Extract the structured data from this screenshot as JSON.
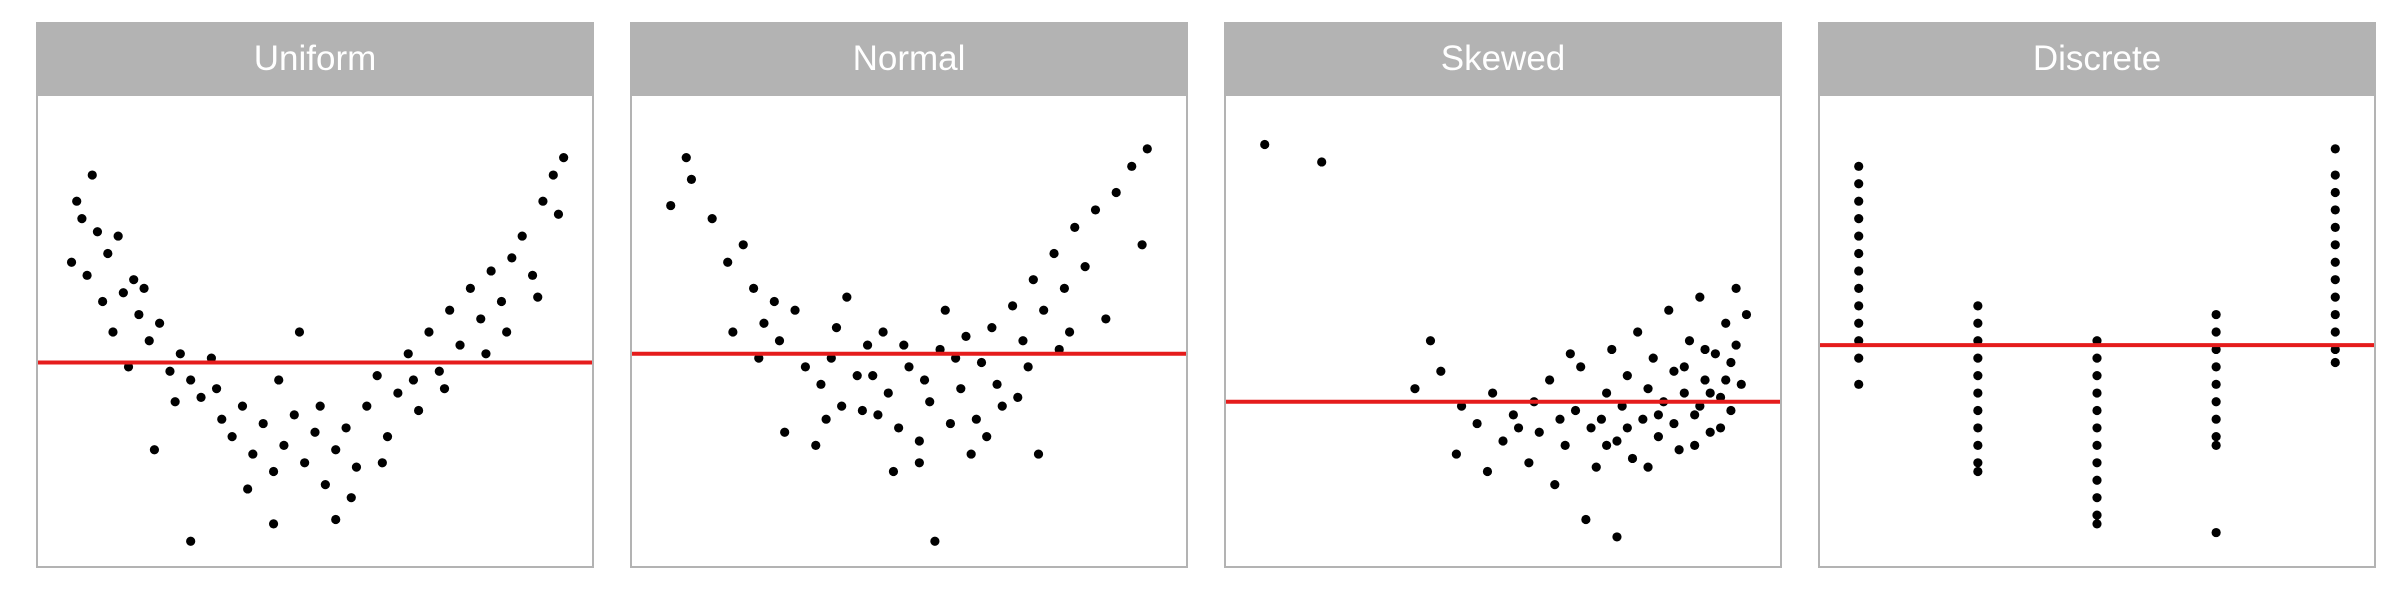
{
  "colors": {
    "point": "#000000",
    "reference_line": "#e51c1c",
    "strip_background": "#b3b3b3",
    "strip_text": "#ffffff",
    "panel_border": "#b3b3b3"
  },
  "chart_data": [
    {
      "type": "scatter",
      "title": "Uniform",
      "xlim": [
        0,
        1
      ],
      "ylim": [
        0,
        1
      ],
      "grid": false,
      "hline": 0.43,
      "points": [
        [
          0.05,
          0.76
        ],
        [
          0.07,
          0.86
        ],
        [
          0.04,
          0.8
        ],
        [
          0.08,
          0.73
        ],
        [
          0.1,
          0.68
        ],
        [
          0.12,
          0.72
        ],
        [
          0.06,
          0.63
        ],
        [
          0.09,
          0.57
        ],
        [
          0.13,
          0.59
        ],
        [
          0.15,
          0.62
        ],
        [
          0.16,
          0.54
        ],
        [
          0.11,
          0.5
        ],
        [
          0.18,
          0.48
        ],
        [
          0.2,
          0.52
        ],
        [
          0.14,
          0.42
        ],
        [
          0.22,
          0.41
        ],
        [
          0.24,
          0.45
        ],
        [
          0.26,
          0.39
        ],
        [
          0.28,
          0.35
        ],
        [
          0.3,
          0.44
        ],
        [
          0.32,
          0.3
        ],
        [
          0.34,
          0.26
        ],
        [
          0.36,
          0.33
        ],
        [
          0.38,
          0.22
        ],
        [
          0.4,
          0.29
        ],
        [
          0.42,
          0.18
        ],
        [
          0.44,
          0.24
        ],
        [
          0.46,
          0.31
        ],
        [
          0.48,
          0.2
        ],
        [
          0.5,
          0.27
        ],
        [
          0.52,
          0.15
        ],
        [
          0.54,
          0.23
        ],
        [
          0.56,
          0.28
        ],
        [
          0.58,
          0.19
        ],
        [
          0.6,
          0.33
        ],
        [
          0.62,
          0.4
        ],
        [
          0.64,
          0.26
        ],
        [
          0.66,
          0.36
        ],
        [
          0.68,
          0.45
        ],
        [
          0.7,
          0.32
        ],
        [
          0.72,
          0.5
        ],
        [
          0.74,
          0.41
        ],
        [
          0.76,
          0.55
        ],
        [
          0.78,
          0.47
        ],
        [
          0.8,
          0.6
        ],
        [
          0.82,
          0.53
        ],
        [
          0.84,
          0.64
        ],
        [
          0.86,
          0.57
        ],
        [
          0.88,
          0.67
        ],
        [
          0.9,
          0.72
        ],
        [
          0.92,
          0.63
        ],
        [
          0.94,
          0.8
        ],
        [
          0.96,
          0.86
        ],
        [
          0.98,
          0.9
        ],
        [
          0.97,
          0.77
        ],
        [
          0.26,
          0.02
        ],
        [
          0.42,
          0.06
        ],
        [
          0.54,
          0.07
        ],
        [
          0.47,
          0.5
        ],
        [
          0.19,
          0.23
        ],
        [
          0.03,
          0.66
        ],
        [
          0.17,
          0.6
        ],
        [
          0.23,
          0.34
        ],
        [
          0.31,
          0.37
        ],
        [
          0.37,
          0.14
        ],
        [
          0.43,
          0.39
        ],
        [
          0.51,
          0.33
        ],
        [
          0.57,
          0.12
        ],
        [
          0.63,
          0.2
        ],
        [
          0.69,
          0.39
        ],
        [
          0.75,
          0.37
        ],
        [
          0.83,
          0.45
        ],
        [
          0.87,
          0.5
        ],
        [
          0.93,
          0.58
        ]
      ]
    },
    {
      "type": "scatter",
      "title": "Normal",
      "xlim": [
        0,
        1
      ],
      "ylim": [
        0,
        1
      ],
      "grid": false,
      "hline": 0.45,
      "points": [
        [
          0.04,
          0.79
        ],
        [
          0.08,
          0.85
        ],
        [
          0.07,
          0.9
        ],
        [
          0.12,
          0.76
        ],
        [
          0.15,
          0.66
        ],
        [
          0.18,
          0.7
        ],
        [
          0.2,
          0.6
        ],
        [
          0.22,
          0.52
        ],
        [
          0.25,
          0.48
        ],
        [
          0.28,
          0.55
        ],
        [
          0.3,
          0.42
        ],
        [
          0.33,
          0.38
        ],
        [
          0.35,
          0.44
        ],
        [
          0.37,
          0.33
        ],
        [
          0.4,
          0.4
        ],
        [
          0.42,
          0.47
        ],
        [
          0.44,
          0.31
        ],
        [
          0.46,
          0.36
        ],
        [
          0.48,
          0.28
        ],
        [
          0.5,
          0.42
        ],
        [
          0.52,
          0.25
        ],
        [
          0.54,
          0.34
        ],
        [
          0.56,
          0.46
        ],
        [
          0.58,
          0.29
        ],
        [
          0.6,
          0.37
        ],
        [
          0.62,
          0.22
        ],
        [
          0.64,
          0.43
        ],
        [
          0.66,
          0.51
        ],
        [
          0.68,
          0.33
        ],
        [
          0.7,
          0.56
        ],
        [
          0.72,
          0.48
        ],
        [
          0.74,
          0.62
        ],
        [
          0.76,
          0.55
        ],
        [
          0.78,
          0.68
        ],
        [
          0.8,
          0.6
        ],
        [
          0.82,
          0.74
        ],
        [
          0.84,
          0.65
        ],
        [
          0.86,
          0.78
        ],
        [
          0.9,
          0.82
        ],
        [
          0.93,
          0.88
        ],
        [
          0.96,
          0.92
        ],
        [
          0.95,
          0.7
        ],
        [
          0.55,
          0.02
        ],
        [
          0.47,
          0.18
        ],
        [
          0.52,
          0.2
        ],
        [
          0.63,
          0.3
        ],
        [
          0.38,
          0.58
        ],
        [
          0.45,
          0.5
        ],
        [
          0.57,
          0.55
        ],
        [
          0.61,
          0.49
        ],
        [
          0.26,
          0.27
        ],
        [
          0.32,
          0.24
        ],
        [
          0.34,
          0.3
        ],
        [
          0.43,
          0.4
        ],
        [
          0.49,
          0.47
        ],
        [
          0.59,
          0.44
        ],
        [
          0.67,
          0.38
        ],
        [
          0.73,
          0.42
        ],
        [
          0.79,
          0.46
        ],
        [
          0.88,
          0.53
        ],
        [
          0.16,
          0.5
        ],
        [
          0.21,
          0.44
        ],
        [
          0.24,
          0.57
        ],
        [
          0.36,
          0.51
        ],
        [
          0.41,
          0.32
        ],
        [
          0.53,
          0.39
        ],
        [
          0.65,
          0.26
        ],
        [
          0.71,
          0.35
        ],
        [
          0.75,
          0.22
        ],
        [
          0.81,
          0.5
        ]
      ]
    },
    {
      "type": "scatter",
      "title": "Skewed",
      "xlim": [
        0,
        1
      ],
      "ylim": [
        0,
        1
      ],
      "grid": false,
      "hline": 0.34,
      "points": [
        [
          0.04,
          0.93
        ],
        [
          0.15,
          0.89
        ],
        [
          0.33,
          0.37
        ],
        [
          0.36,
          0.48
        ],
        [
          0.38,
          0.41
        ],
        [
          0.42,
          0.33
        ],
        [
          0.45,
          0.29
        ],
        [
          0.48,
          0.36
        ],
        [
          0.5,
          0.25
        ],
        [
          0.52,
          0.31
        ],
        [
          0.55,
          0.2
        ],
        [
          0.57,
          0.27
        ],
        [
          0.59,
          0.39
        ],
        [
          0.6,
          0.15
        ],
        [
          0.62,
          0.24
        ],
        [
          0.64,
          0.32
        ],
        [
          0.65,
          0.42
        ],
        [
          0.67,
          0.28
        ],
        [
          0.68,
          0.19
        ],
        [
          0.7,
          0.36
        ],
        [
          0.71,
          0.46
        ],
        [
          0.72,
          0.25
        ],
        [
          0.73,
          0.33
        ],
        [
          0.74,
          0.4
        ],
        [
          0.75,
          0.21
        ],
        [
          0.76,
          0.5
        ],
        [
          0.77,
          0.3
        ],
        [
          0.78,
          0.37
        ],
        [
          0.79,
          0.44
        ],
        [
          0.8,
          0.26
        ],
        [
          0.81,
          0.34
        ],
        [
          0.82,
          0.55
        ],
        [
          0.83,
          0.41
        ],
        [
          0.84,
          0.23
        ],
        [
          0.85,
          0.36
        ],
        [
          0.86,
          0.48
        ],
        [
          0.87,
          0.31
        ],
        [
          0.88,
          0.58
        ],
        [
          0.89,
          0.39
        ],
        [
          0.9,
          0.27
        ],
        [
          0.91,
          0.45
        ],
        [
          0.92,
          0.35
        ],
        [
          0.93,
          0.52
        ],
        [
          0.94,
          0.43
        ],
        [
          0.95,
          0.6
        ],
        [
          0.96,
          0.38
        ],
        [
          0.97,
          0.54
        ],
        [
          0.66,
          0.07
        ],
        [
          0.72,
          0.03
        ],
        [
          0.41,
          0.22
        ],
        [
          0.47,
          0.18
        ],
        [
          0.53,
          0.28
        ],
        [
          0.56,
          0.34
        ],
        [
          0.61,
          0.3
        ],
        [
          0.63,
          0.45
        ],
        [
          0.69,
          0.3
        ],
        [
          0.7,
          0.24
        ],
        [
          0.74,
          0.28
        ],
        [
          0.78,
          0.19
        ],
        [
          0.8,
          0.31
        ],
        [
          0.83,
          0.29
        ],
        [
          0.85,
          0.42
        ],
        [
          0.87,
          0.24
        ],
        [
          0.88,
          0.33
        ],
        [
          0.9,
          0.36
        ],
        [
          0.92,
          0.28
        ],
        [
          0.94,
          0.32
        ],
        [
          0.95,
          0.47
        ],
        [
          0.93,
          0.39
        ],
        [
          0.89,
          0.46
        ]
      ]
    },
    {
      "type": "scatter",
      "title": "Discrete",
      "xlim": [
        0,
        1
      ],
      "ylim": [
        0,
        1
      ],
      "grid": false,
      "hline": 0.47,
      "x_levels": [
        0.04,
        0.27,
        0.5,
        0.73,
        0.96
      ],
      "points": [
        [
          0.04,
          0.88
        ],
        [
          0.04,
          0.84
        ],
        [
          0.04,
          0.8
        ],
        [
          0.04,
          0.76
        ],
        [
          0.04,
          0.72
        ],
        [
          0.04,
          0.68
        ],
        [
          0.04,
          0.64
        ],
        [
          0.04,
          0.6
        ],
        [
          0.04,
          0.56
        ],
        [
          0.04,
          0.52
        ],
        [
          0.04,
          0.48
        ],
        [
          0.04,
          0.44
        ],
        [
          0.04,
          0.38
        ],
        [
          0.27,
          0.56
        ],
        [
          0.27,
          0.52
        ],
        [
          0.27,
          0.48
        ],
        [
          0.27,
          0.44
        ],
        [
          0.27,
          0.4
        ],
        [
          0.27,
          0.36
        ],
        [
          0.27,
          0.32
        ],
        [
          0.27,
          0.28
        ],
        [
          0.27,
          0.24
        ],
        [
          0.27,
          0.2
        ],
        [
          0.27,
          0.18
        ],
        [
          0.5,
          0.48
        ],
        [
          0.5,
          0.44
        ],
        [
          0.5,
          0.4
        ],
        [
          0.5,
          0.36
        ],
        [
          0.5,
          0.32
        ],
        [
          0.5,
          0.28
        ],
        [
          0.5,
          0.24
        ],
        [
          0.5,
          0.2
        ],
        [
          0.5,
          0.16
        ],
        [
          0.5,
          0.12
        ],
        [
          0.5,
          0.08
        ],
        [
          0.5,
          0.06
        ],
        [
          0.73,
          0.54
        ],
        [
          0.73,
          0.5
        ],
        [
          0.73,
          0.46
        ],
        [
          0.73,
          0.42
        ],
        [
          0.73,
          0.38
        ],
        [
          0.73,
          0.34
        ],
        [
          0.73,
          0.3
        ],
        [
          0.73,
          0.26
        ],
        [
          0.73,
          0.24
        ],
        [
          0.73,
          0.04
        ],
        [
          0.96,
          0.92
        ],
        [
          0.96,
          0.86
        ],
        [
          0.96,
          0.82
        ],
        [
          0.96,
          0.78
        ],
        [
          0.96,
          0.74
        ],
        [
          0.96,
          0.7
        ],
        [
          0.96,
          0.66
        ],
        [
          0.96,
          0.62
        ],
        [
          0.96,
          0.58
        ],
        [
          0.96,
          0.54
        ],
        [
          0.96,
          0.5
        ],
        [
          0.96,
          0.46
        ],
        [
          0.96,
          0.43
        ]
      ]
    }
  ]
}
